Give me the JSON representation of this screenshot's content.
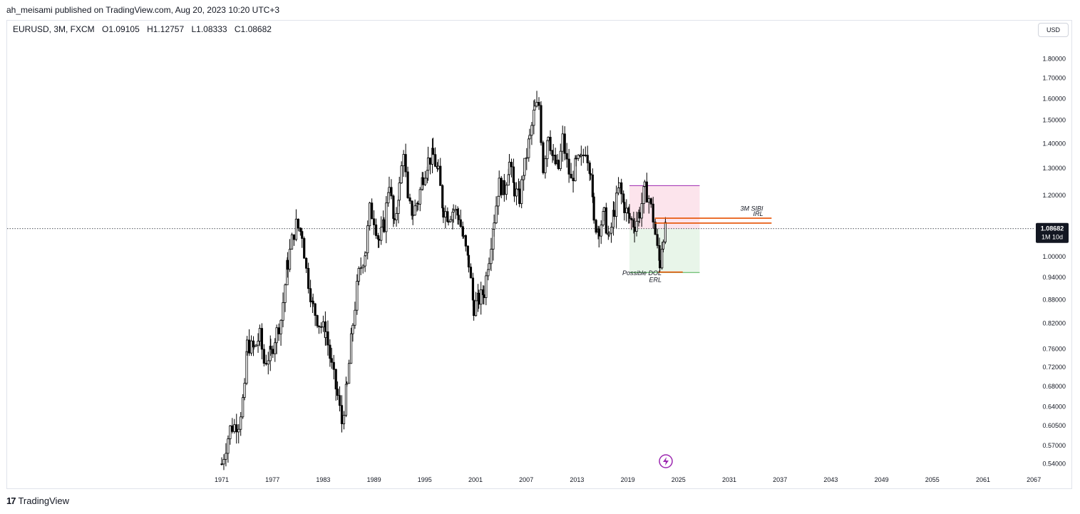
{
  "header": {
    "published": "ah_meisami published on TradingView.com, Aug 20, 2023 10:20 UTC+3"
  },
  "symbol": {
    "name": "EURUSD, 3M, FXCM",
    "open": "O1.09105",
    "high": "H1.12757",
    "low": "L1.08333",
    "close": "C1.08682"
  },
  "currency_button": "USD",
  "price_badge": {
    "price": "1.08682",
    "countdown": "1M 10d"
  },
  "footer": {
    "logo": "17",
    "brand": "TradingView"
  },
  "colors": {
    "candle": "#000000",
    "premium_zone": "#fce4ec",
    "premium_border": "#9c27b0",
    "discount_zone": "#e8f5e9",
    "discount_border": "#4caf50",
    "sibi_line": "#e65100",
    "dol_line": "#e65100",
    "badge_bg": "#131722",
    "lightning": "#9c27b0"
  },
  "chart_data": {
    "type": "candlestick",
    "x_tick_labels": [
      "1971",
      "1977",
      "1983",
      "1989",
      "1995",
      "2001",
      "2007",
      "2013",
      "2019",
      "2025",
      "2031",
      "2037",
      "2043",
      "2049",
      "2055",
      "2061",
      "2067"
    ],
    "y_tick_labels": [
      "1.80000",
      "1.70000",
      "1.60000",
      "1.50000",
      "1.40000",
      "1.30000",
      "1.20000",
      "1.00000",
      "0.94000",
      "0.88000",
      "0.82000",
      "0.76000",
      "0.72000",
      "0.68000",
      "0.64000",
      "0.60500",
      "0.57000",
      "0.54000"
    ],
    "y_scale": "log",
    "x_range": [
      1971,
      2067
    ],
    "y_range": [
      0.54,
      1.8
    ],
    "current_price": 1.08682,
    "annotations": [
      {
        "text": "3M SIBI",
        "year": 2035,
        "price": 1.147
      },
      {
        "text": "IRL",
        "year": 2035,
        "price": 1.128
      },
      {
        "text": "Possible DOL",
        "year": 2023,
        "price": 0.946
      },
      {
        "text": "ERL",
        "year": 2023,
        "price": 0.928
      }
    ],
    "zones": [
      {
        "kind": "premium",
        "from": 2019.2,
        "to": 2027.5,
        "top": 1.235,
        "bottom": 1.086
      },
      {
        "kind": "discount",
        "from": 2019.2,
        "to": 2027.5,
        "top": 1.086,
        "bottom": 0.954
      }
    ],
    "levels": [
      {
        "name": "sibi-top",
        "from": 2022.2,
        "to": 2036,
        "price": 1.121
      },
      {
        "name": "sibi-bottom",
        "from": 2022.2,
        "to": 2036,
        "price": 1.105
      },
      {
        "name": "dol",
        "from": 2022.6,
        "to": 2025.5,
        "price": 0.955
      }
    ],
    "series": [
      {
        "values": [
          [
            1971.0,
            0.54
          ],
          [
            1972.0,
            0.6
          ],
          [
            1973.0,
            0.61
          ],
          [
            1973.7,
            0.67
          ],
          [
            1974.0,
            0.77
          ],
          [
            1974.8,
            0.76
          ],
          [
            1975.5,
            0.79
          ],
          [
            1976.0,
            0.73
          ],
          [
            1976.8,
            0.75
          ],
          [
            1977.5,
            0.8
          ],
          [
            1978.0,
            0.83
          ],
          [
            1978.8,
            0.98
          ],
          [
            1979.3,
            1.05
          ],
          [
            1979.8,
            1.1
          ],
          [
            1980.5,
            1.07
          ],
          [
            1981.0,
            0.96
          ],
          [
            1981.8,
            0.86
          ],
          [
            1982.5,
            0.82
          ],
          [
            1983.3,
            0.8
          ],
          [
            1984.0,
            0.72
          ],
          [
            1984.7,
            0.66
          ],
          [
            1985.2,
            0.61
          ],
          [
            1985.8,
            0.68
          ],
          [
            1986.5,
            0.82
          ],
          [
            1987.2,
            0.95
          ],
          [
            1988.0,
            1.02
          ],
          [
            1988.5,
            1.15
          ],
          [
            1989.0,
            1.12
          ],
          [
            1989.6,
            1.05
          ],
          [
            1990.2,
            1.1
          ],
          [
            1990.8,
            1.25
          ],
          [
            1991.4,
            1.09
          ],
          [
            1992.0,
            1.23
          ],
          [
            1992.5,
            1.38
          ],
          [
            1993.0,
            1.17
          ],
          [
            1993.6,
            1.14
          ],
          [
            1994.2,
            1.18
          ],
          [
            1994.8,
            1.27
          ],
          [
            1995.4,
            1.33
          ],
          [
            1996.0,
            1.35
          ],
          [
            1996.6,
            1.28
          ],
          [
            1997.2,
            1.15
          ],
          [
            1997.8,
            1.13
          ],
          [
            1998.4,
            1.15
          ],
          [
            1999.0,
            1.13
          ],
          [
            1999.6,
            1.05
          ],
          [
            2000.2,
            0.98
          ],
          [
            2000.8,
            0.86
          ],
          [
            2001.4,
            0.88
          ],
          [
            2002.0,
            0.9
          ],
          [
            2002.6,
            1.0
          ],
          [
            2003.2,
            1.12
          ],
          [
            2003.8,
            1.24
          ],
          [
            2004.4,
            1.22
          ],
          [
            2005.0,
            1.32
          ],
          [
            2005.6,
            1.22
          ],
          [
            2006.2,
            1.19
          ],
          [
            2006.8,
            1.31
          ],
          [
            2007.4,
            1.42
          ],
          [
            2008.0,
            1.55
          ],
          [
            2008.5,
            1.57
          ],
          [
            2009.0,
            1.3
          ],
          [
            2009.6,
            1.45
          ],
          [
            2010.2,
            1.33
          ],
          [
            2010.8,
            1.3
          ],
          [
            2011.3,
            1.42
          ],
          [
            2011.8,
            1.32
          ],
          [
            2012.3,
            1.25
          ],
          [
            2012.9,
            1.32
          ],
          [
            2013.5,
            1.33
          ],
          [
            2014.0,
            1.38
          ],
          [
            2014.6,
            1.3
          ],
          [
            2015.0,
            1.1
          ],
          [
            2015.6,
            1.09
          ],
          [
            2016.2,
            1.13
          ],
          [
            2016.8,
            1.05
          ],
          [
            2017.4,
            1.15
          ],
          [
            2018.0,
            1.23
          ],
          [
            2018.6,
            1.16
          ],
          [
            2019.2,
            1.12
          ],
          [
            2019.8,
            1.1
          ],
          [
            2020.4,
            1.14
          ],
          [
            2021.0,
            1.22
          ],
          [
            2021.5,
            1.19
          ],
          [
            2022.0,
            1.12
          ],
          [
            2022.5,
            1.02
          ],
          [
            2022.8,
            0.98
          ],
          [
            2023.2,
            1.07
          ],
          [
            2023.6,
            1.09
          ]
        ]
      }
    ]
  }
}
